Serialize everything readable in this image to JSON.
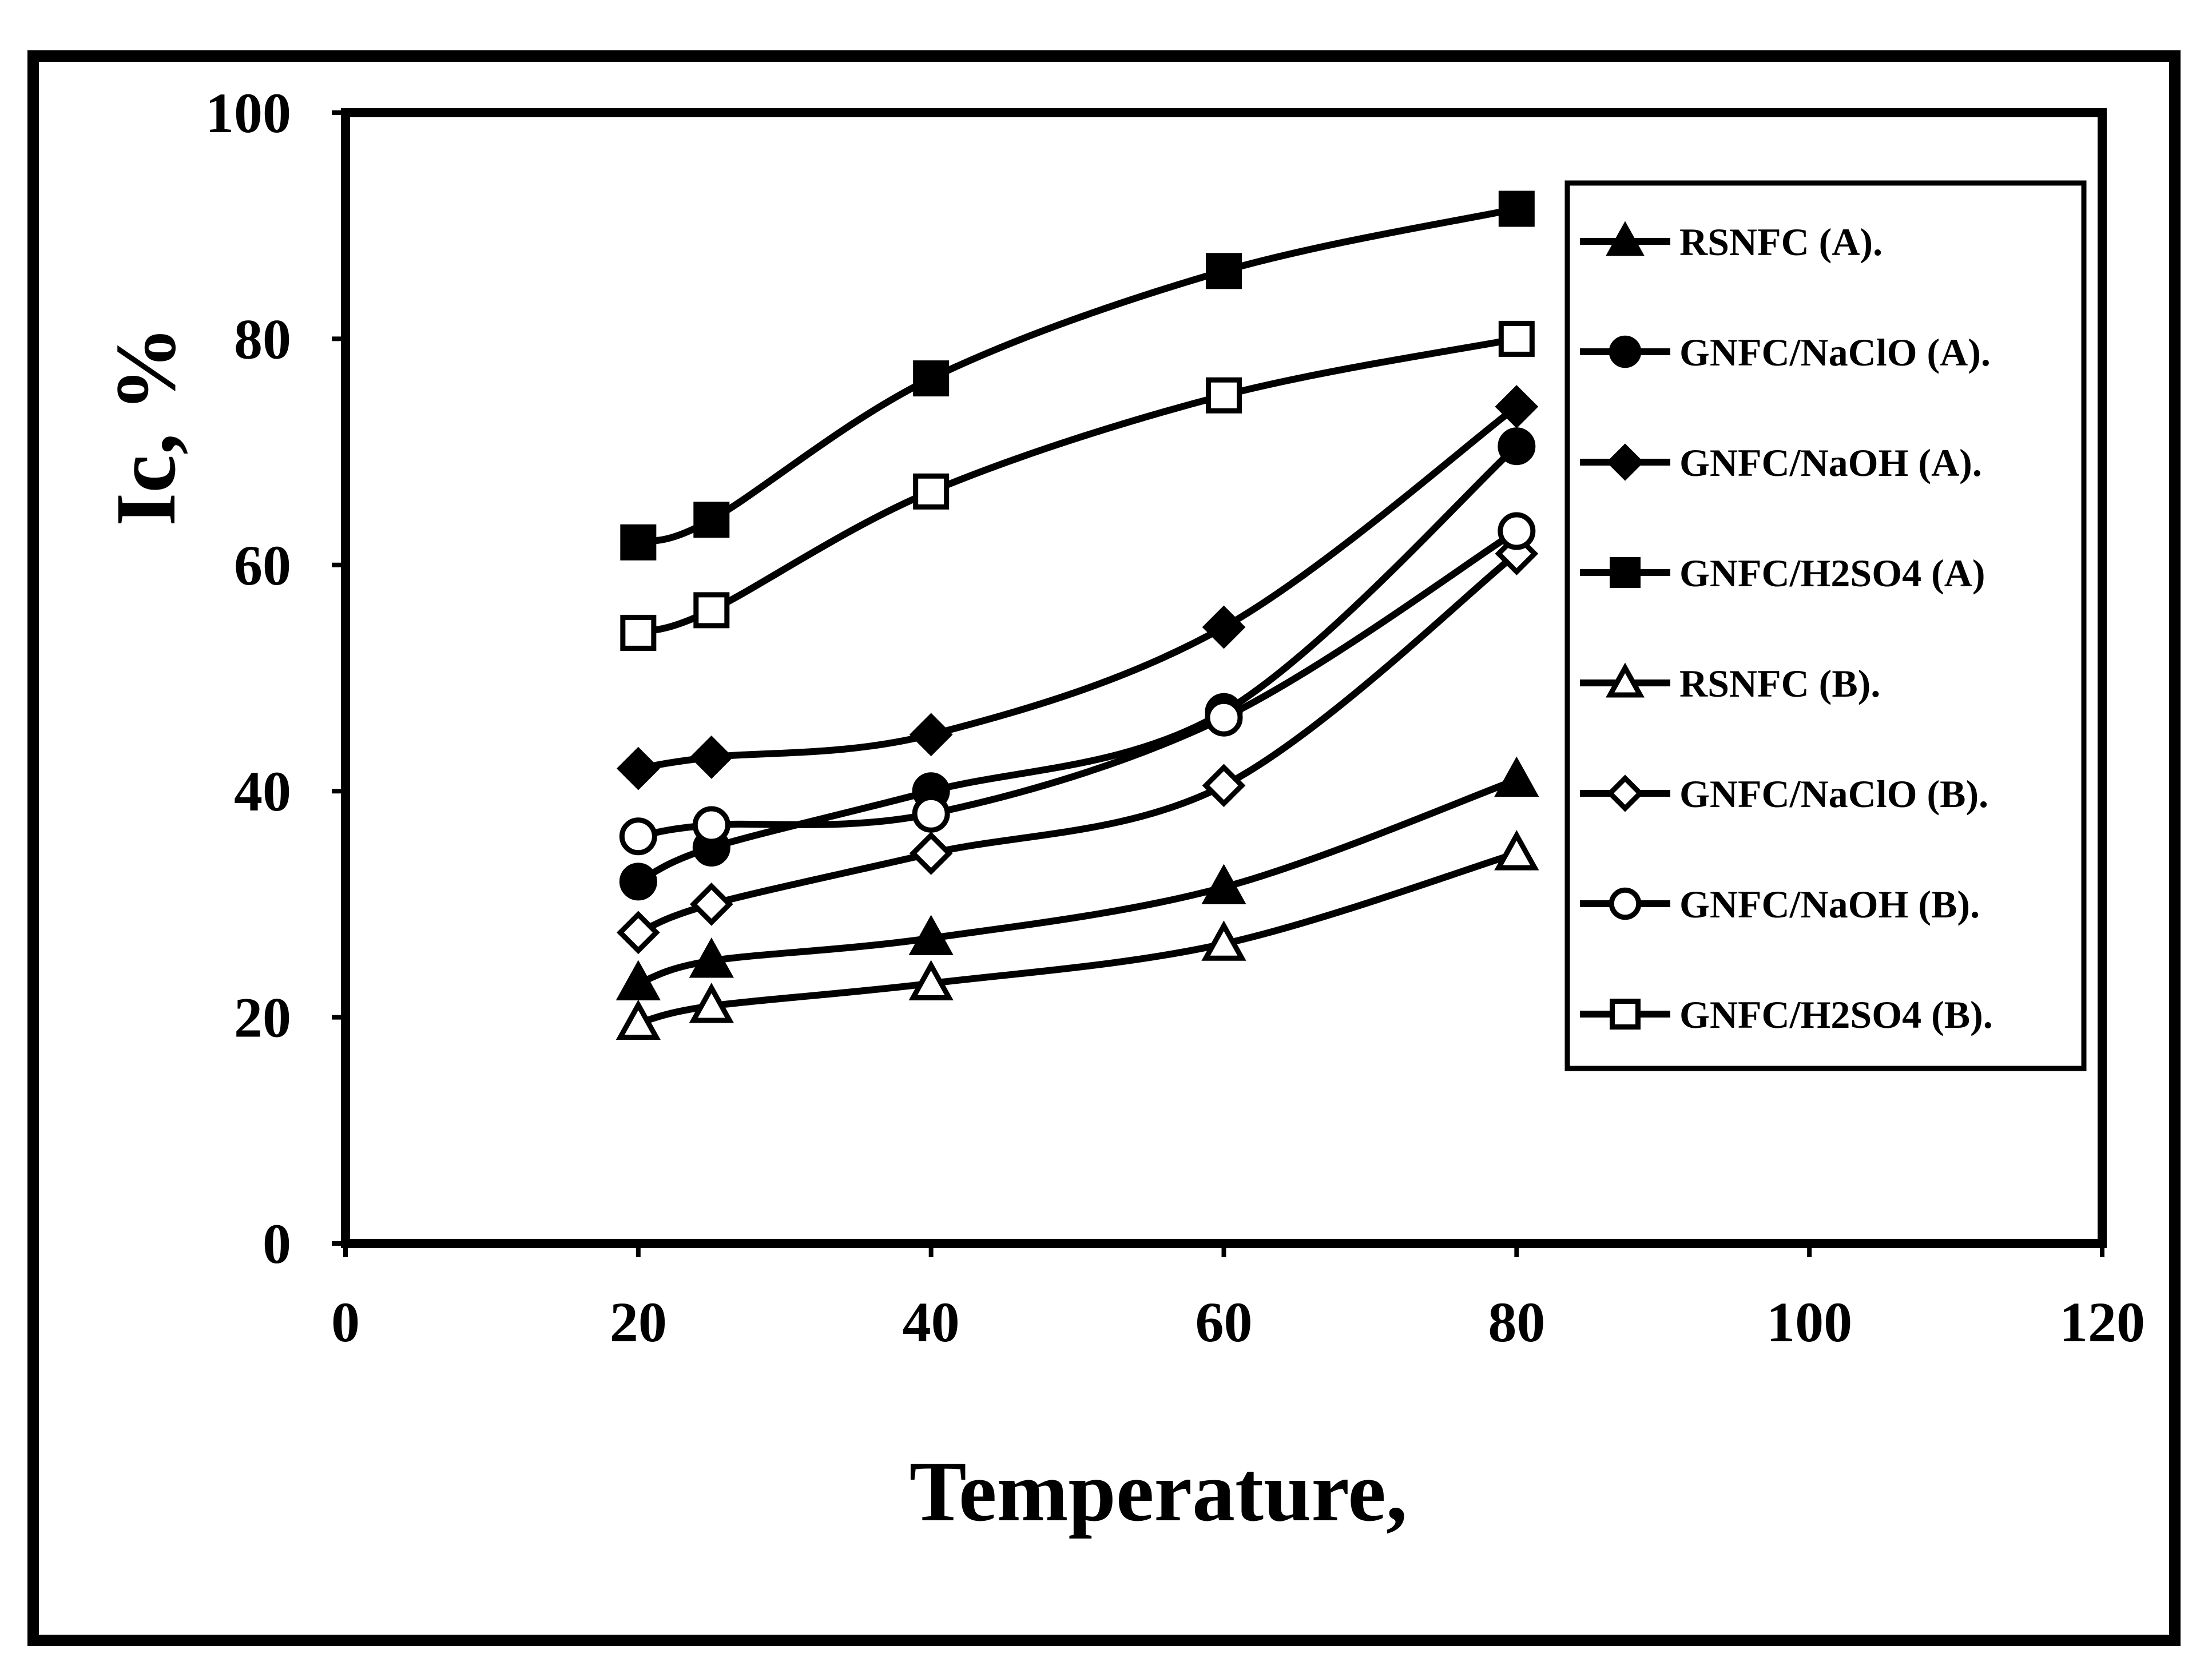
{
  "chart_data": {
    "type": "line",
    "title": "",
    "xlabel": "Temperature,",
    "ylabel": "Ic, %",
    "xlim": [
      0,
      120
    ],
    "ylim": [
      0,
      100
    ],
    "x_ticks": [
      0,
      20,
      40,
      60,
      80,
      100,
      120
    ],
    "y_ticks": [
      0,
      20,
      40,
      60,
      80,
      100
    ],
    "x_tick_labels": [
      "0",
      "20",
      "40",
      "60",
      "80",
      "100",
      "120"
    ],
    "y_tick_labels": [
      "0",
      "20",
      "40",
      "60",
      "80",
      "100"
    ],
    "grid": false,
    "legend_position": "top-right",
    "line_color": "#000000",
    "x": [
      20,
      25,
      40,
      60,
      80
    ],
    "series": [
      {
        "name": "RSNFC (A).",
        "marker": "triangle",
        "filled": true,
        "values": [
          23,
          25,
          27,
          31.5,
          41
        ]
      },
      {
        "name": "GNFC/NaClO (A).",
        "marker": "circle",
        "filled": true,
        "values": [
          32,
          35,
          40,
          47,
          70.5
        ]
      },
      {
        "name": "GNFC/NaOH (A).",
        "marker": "diamond",
        "filled": true,
        "values": [
          42,
          43,
          45,
          54.5,
          74
        ]
      },
      {
        "name": "GNFC/H2SO4 (A)",
        "marker": "square",
        "filled": true,
        "values": [
          62,
          64,
          76.5,
          86,
          91.5
        ]
      },
      {
        "name": "RSNFC (B).",
        "marker": "triangle",
        "filled": false,
        "values": [
          19.5,
          21,
          23,
          26.5,
          34.5
        ]
      },
      {
        "name": "GNFC/NaClO (B).",
        "marker": "diamond",
        "filled": false,
        "values": [
          27.5,
          30,
          34.5,
          40.5,
          61
        ]
      },
      {
        "name": "GNFC/NaOH (B).",
        "marker": "circle",
        "filled": false,
        "values": [
          36,
          37,
          38,
          46.5,
          63
        ]
      },
      {
        "name": "GNFC/H2SO4 (B).",
        "marker": "square",
        "filled": false,
        "values": [
          54,
          56,
          66.5,
          75,
          80
        ]
      }
    ]
  }
}
